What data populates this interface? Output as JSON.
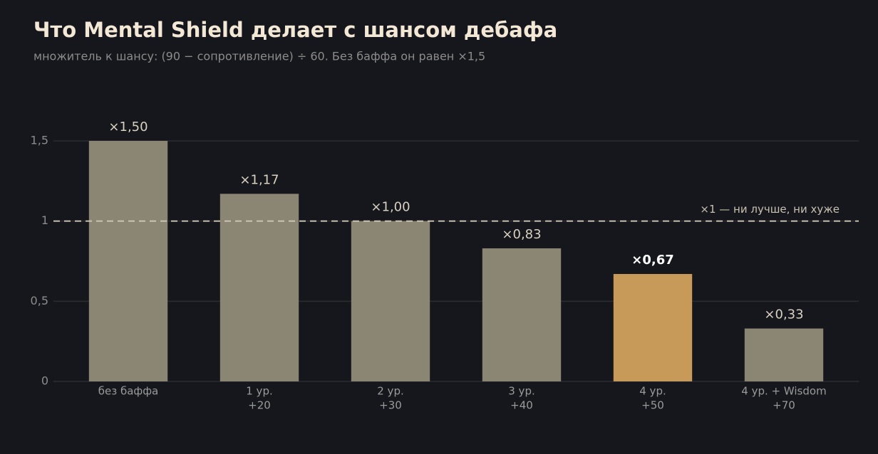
{
  "chart_data": {
    "type": "bar",
    "title": "Что Mental Shield делает с шансом дебафа",
    "subtitle": "множитель к шансу: (90 − сопротивление) ÷ 60. Без баффа он равен ×1,5",
    "categories": [
      [
        "без баффа"
      ],
      [
        "1 ур.",
        "+20"
      ],
      [
        "2 ур.",
        "+30"
      ],
      [
        "3 ур.",
        "+40"
      ],
      [
        "4 ур.",
        "+50"
      ],
      [
        "4 ур. + Wisdom",
        "+70"
      ]
    ],
    "values": [
      1.5,
      1.17,
      1.0,
      0.83,
      0.67,
      0.33
    ],
    "value_labels": [
      "×1,50",
      "×1,17",
      "×1,00",
      "×0,83",
      "×0,67",
      "×0,33"
    ],
    "colors": [
      "#8b8674",
      "#8b8674",
      "#8b8674",
      "#8b8674",
      "#c89a5a",
      "#8b8674"
    ],
    "highlight_color": "#c89a5a",
    "ylim": [
      0,
      1.5
    ],
    "yticks": [
      0,
      {
        "value": 0.5,
        "label": "0,5"
      },
      1,
      {
        "value": 1.5,
        "label": "1,5"
      }
    ],
    "grid": true,
    "reference_line": {
      "value": 1,
      "label": "×1 — ни лучше, ни хуже"
    }
  }
}
